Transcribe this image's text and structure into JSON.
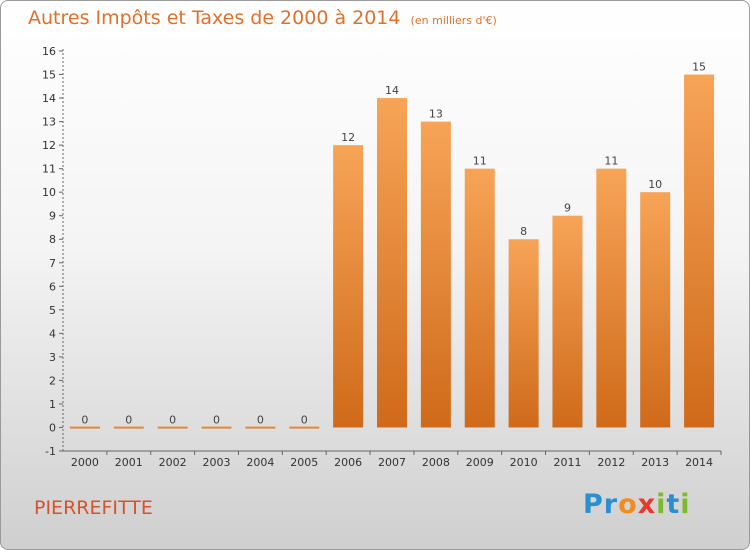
{
  "title": "Autres Impôts et Taxes de 2000 à 2014",
  "subtitle": "(en milliers d'€)",
  "place": "PIERREFITTE",
  "logo": {
    "text": "Proxiti",
    "letters": [
      {
        "ch": "P",
        "color": "#2a8fd0"
      },
      {
        "ch": "r",
        "color": "#2a8fd0"
      },
      {
        "ch": "o",
        "color": "#f28c1e"
      },
      {
        "ch": "x",
        "color": "#e8392a"
      },
      {
        "ch": "i",
        "color": "#7dbb2e"
      },
      {
        "ch": "t",
        "color": "#2a8fd0"
      },
      {
        "ch": "i",
        "color": "#7dbb2e"
      }
    ]
  },
  "colors": {
    "accent": "#e0702a",
    "bar_top": "#f7a457",
    "bar_bottom": "#cf6a1a"
  },
  "chart_data": {
    "type": "bar",
    "categories": [
      "2000",
      "2001",
      "2002",
      "2003",
      "2004",
      "2005",
      "2006",
      "2007",
      "2008",
      "2009",
      "2010",
      "2011",
      "2012",
      "2013",
      "2014"
    ],
    "values": [
      0,
      0,
      0,
      0,
      0,
      0,
      12,
      14,
      13,
      11,
      8,
      9,
      11,
      10,
      15
    ],
    "ylim": [
      -1,
      16
    ],
    "yticks": [
      -1,
      0,
      1,
      2,
      3,
      4,
      5,
      6,
      7,
      8,
      9,
      10,
      11,
      12,
      13,
      14,
      15,
      16
    ],
    "grid": false,
    "legend": "none"
  }
}
